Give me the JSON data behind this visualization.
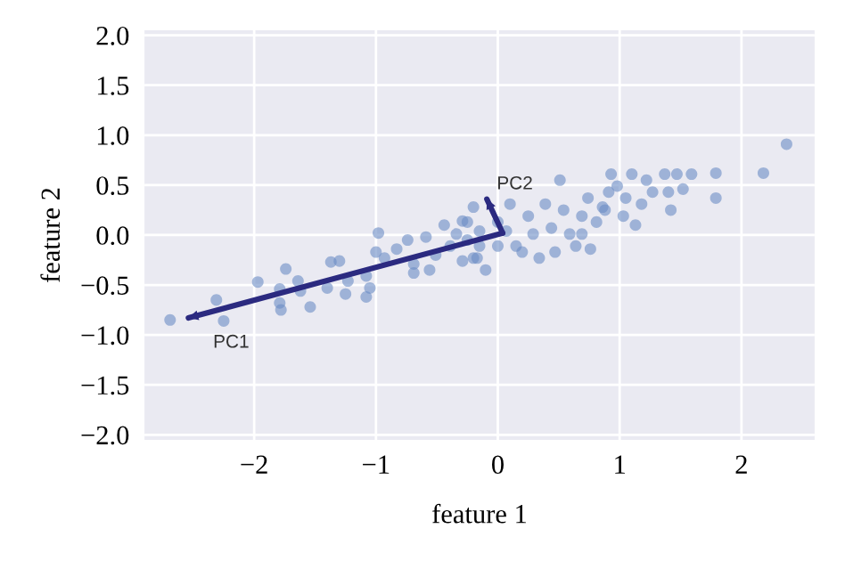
{
  "chart_data": {
    "type": "scatter",
    "xlabel": "feature 1",
    "ylabel": "feature 2",
    "xlim": [
      -2.9,
      2.6
    ],
    "ylim": [
      -2.05,
      2.05
    ],
    "xticks": [
      {
        "value": -2,
        "label": "−2"
      },
      {
        "value": -1,
        "label": "−1"
      },
      0,
      1,
      2
    ],
    "yticks": [
      {
        "value": -2,
        "label": "−2.0"
      },
      {
        "value": -1.5,
        "label": "−1.5"
      },
      {
        "value": -1,
        "label": "−1.0"
      },
      {
        "value": -0.5,
        "label": "−0.5"
      },
      {
        "value": 0,
        "label": "0.0"
      },
      {
        "value": 0.5,
        "label": "0.5"
      },
      {
        "value": 1,
        "label": "1.0"
      },
      {
        "value": 1.5,
        "label": "1.5"
      },
      {
        "value": 2,
        "label": "2.0"
      }
    ],
    "grid": true,
    "series": [
      {
        "marker": "circle",
        "color": "#6b8cc4",
        "x": [
          -2.69,
          -2.25,
          -2.31,
          -1.97,
          -1.79,
          -1.74,
          -1.64,
          -1.54,
          -1.78,
          -1.79,
          -1.62,
          -1.37,
          -1.3,
          -1.4,
          -1.25,
          -1.23,
          -1.08,
          -1.05,
          -1.08,
          -0.98,
          -1.0,
          -0.93,
          -0.83,
          -0.74,
          -0.69,
          -0.59,
          -0.51,
          -0.44,
          -0.39,
          -0.29,
          -0.25,
          -0.2,
          -0.17,
          -0.29,
          -0.56,
          -0.69,
          -0.34,
          -0.15,
          -0.25,
          -0.2,
          -0.1,
          -0.15,
          0.0,
          0.1,
          0.15,
          0.2,
          0.25,
          0.29,
          0.34,
          0.39,
          0.44,
          0.51,
          0.54,
          0.59,
          0.64,
          0.69,
          0.74,
          0.76,
          0.81,
          0.86,
          0.91,
          0.93,
          0.98,
          1.03,
          1.05,
          1.1,
          1.13,
          1.18,
          1.22,
          1.27,
          1.37,
          1.4,
          1.42,
          1.47,
          1.52,
          1.59,
          1.79,
          1.79,
          2.18,
          2.37,
          0.0,
          0.07,
          0.69,
          0.88,
          0.47
        ],
        "values": [
          -0.85,
          -0.86,
          -0.65,
          -0.47,
          -0.54,
          -0.34,
          -0.46,
          -0.72,
          -0.75,
          -0.68,
          -0.56,
          -0.27,
          -0.26,
          -0.53,
          -0.59,
          -0.46,
          -0.41,
          -0.53,
          -0.62,
          0.02,
          -0.17,
          -0.23,
          -0.14,
          -0.05,
          -0.29,
          -0.02,
          -0.2,
          0.1,
          -0.11,
          0.14,
          -0.05,
          0.28,
          -0.23,
          -0.26,
          -0.35,
          -0.38,
          0.01,
          0.04,
          0.13,
          -0.23,
          -0.35,
          -0.11,
          0.13,
          0.31,
          -0.11,
          -0.17,
          0.19,
          0.01,
          -0.23,
          0.31,
          0.07,
          0.55,
          0.25,
          0.01,
          -0.11,
          0.19,
          0.37,
          -0.14,
          0.13,
          0.28,
          0.43,
          0.61,
          0.49,
          0.19,
          0.37,
          0.61,
          0.1,
          0.31,
          0.55,
          0.43,
          0.61,
          0.43,
          0.25,
          0.61,
          0.46,
          0.61,
          0.62,
          0.37,
          0.62,
          0.91,
          -0.11,
          0.04,
          0.01,
          0.25,
          -0.17
        ]
      },
      {
        "type": "line",
        "color": "#2b2a80",
        "x": [
          0.04,
          -2.54
        ],
        "values": [
          0.02,
          -0.83
        ]
      },
      {
        "type": "line",
        "color": "#2b2a80",
        "x": [
          0.04,
          -0.09
        ],
        "values": [
          0.02,
          0.36
        ]
      }
    ],
    "annotations": [
      "PC1",
      "PC2"
    ]
  }
}
